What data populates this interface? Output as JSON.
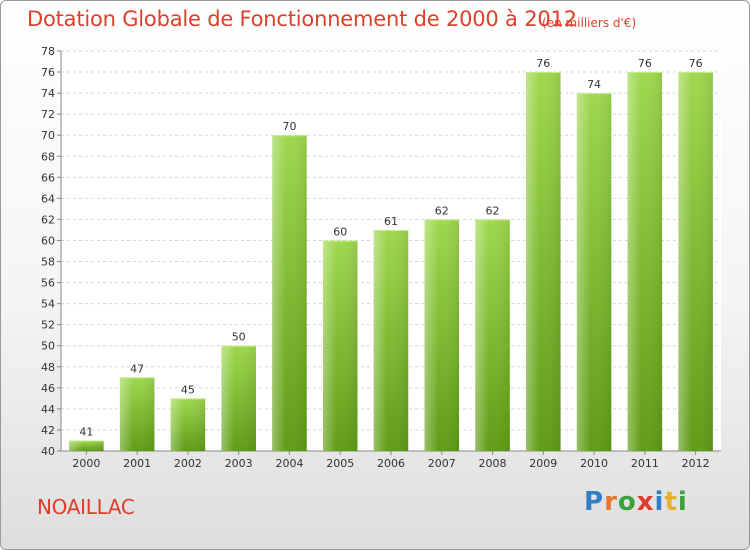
{
  "chart_data": {
    "type": "bar",
    "title": "Dotation Globale de Fonctionnement de 2000 à 2012",
    "subtitle": "(en milliers d'€)",
    "categories": [
      "2000",
      "2001",
      "2002",
      "2003",
      "2004",
      "2005",
      "2006",
      "2007",
      "2008",
      "2009",
      "2010",
      "2011",
      "2012"
    ],
    "values": [
      41,
      47,
      45,
      50,
      70,
      60,
      61,
      62,
      62,
      76,
      74,
      76,
      76
    ],
    "ylim": [
      40,
      78
    ],
    "yticks": [
      40,
      42,
      44,
      46,
      48,
      50,
      52,
      54,
      56,
      58,
      60,
      62,
      64,
      66,
      68,
      70,
      72,
      74,
      76,
      78
    ],
    "grid": true,
    "bar_color": "#7fc12e"
  },
  "commune": "NOAILLAC",
  "logo": {
    "letters": [
      "P",
      "r",
      "o",
      "x",
      "i",
      "t",
      "i"
    ],
    "colors": [
      "#2f7fc8",
      "#e8762c",
      "#3aa23a",
      "#e03a2f",
      "#2f7fc8",
      "#e8b12c",
      "#3aa23a"
    ]
  }
}
